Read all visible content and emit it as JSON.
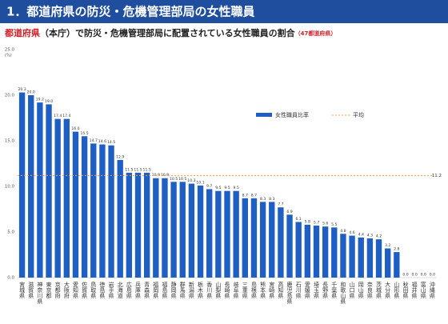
{
  "chart_data": {
    "type": "bar",
    "title": "1．都道府県の防災・危機管理部局の女性職員",
    "subtitle_lead": "都道府県",
    "subtitle": "（本庁）で防災・危機管理部局に配置されている女性職員の割合",
    "subtitle_note": "（47都道府県）",
    "y_label": "(%)",
    "categories": [
      "宮城県",
      "滋賀県",
      "神奈川県",
      "東京都",
      "京都府",
      "大阪府",
      "愛知県",
      "佐賀県",
      "鳥取県",
      "徳島県",
      "岩手県",
      "北海道",
      "広島県",
      "兵庫県",
      "青森県",
      "福岡県",
      "福島県",
      "静岡県",
      "群馬県",
      "新潟県",
      "栃木県",
      "香川県",
      "山梨県",
      "長崎県",
      "岐阜県",
      "三重県",
      "島根県",
      "熊本県",
      "宮崎県",
      "高知県",
      "鹿児島県",
      "石川県",
      "愛媛県",
      "埼玉県",
      "長野県",
      "千葉県",
      "和歌山県",
      "山口県",
      "岡山県",
      "奈良県",
      "茨城県",
      "大分県",
      "山形県",
      "秋田県",
      "福井県",
      "富山県",
      "沖縄県"
    ],
    "series": [
      {
        "name": "女性職員比率",
        "color": "#1f5fc4",
        "values": [
          20.3,
          20.0,
          19.2,
          19.0,
          17.4,
          17.4,
          16.0,
          15.5,
          14.7,
          14.6,
          14.5,
          12.9,
          11.5,
          11.5,
          11.5,
          10.9,
          10.9,
          10.5,
          10.5,
          10.3,
          10.1,
          9.7,
          9.5,
          9.5,
          9.5,
          8.7,
          8.7,
          8.3,
          8.3,
          7.7,
          6.9,
          6.1,
          5.8,
          5.7,
          5.6,
          5.5,
          4.8,
          4.6,
          4.4,
          4.3,
          4.2,
          3.2,
          2.8,
          0,
          0,
          0,
          0
        ],
        "value_labels": [
          "20.3",
          "20.0",
          "19.2",
          "19.0",
          "17.4",
          "17.4",
          "16.0",
          "15.5",
          "14.7",
          "14.6",
          "14.5",
          "12.9",
          "11.5",
          "11.5",
          "11.5",
          "10.9",
          "10.9",
          "10.5",
          "10.5",
          "10.3",
          "10.1",
          "9.7",
          "9.5",
          "9.5",
          "9.5",
          "8.7",
          "8.7",
          "8.3",
          "8.3",
          "7.7",
          "6.9",
          "6.1",
          "5.8",
          "5.7",
          "5.6",
          "5.5",
          "4.8",
          "4.6",
          "4.4",
          "4.3",
          "4.2",
          "3.2",
          "2.8",
          "0.0",
          "0.0",
          "0.0",
          "0.0"
        ]
      }
    ],
    "average": {
      "name": "平均",
      "value": 11.2,
      "color": "#f0a040"
    },
    "ylim": [
      0,
      25
    ],
    "yticks": [
      {
        "value": 0,
        "label": "0.0"
      },
      {
        "value": 5,
        "label": "5.0"
      },
      {
        "value": 10,
        "label": "10.0"
      },
      {
        "value": 15,
        "label": "15.0"
      },
      {
        "value": 20,
        "label": "20.0"
      },
      {
        "value": 25,
        "label": "25.0"
      }
    ],
    "grid": false
  }
}
